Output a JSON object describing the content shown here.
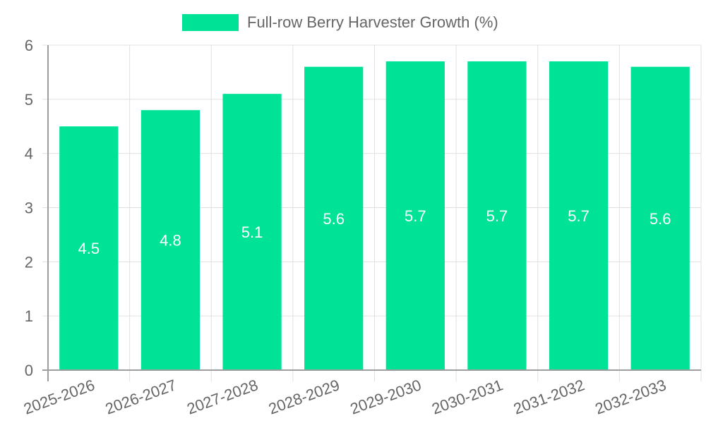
{
  "legend": {
    "label": "Full-row Berry Harvester Growth (%)",
    "color": "#00e396"
  },
  "colors": {
    "bar": "#00e396",
    "grid": "#e0e0e0",
    "axis": "#9e9e9e",
    "tick_text": "#666666",
    "bar_label": "#ffffff"
  },
  "chart_data": {
    "type": "bar",
    "title": "",
    "categories": [
      "2025-2026",
      "2026-2027",
      "2027-2028",
      "2028-2029",
      "2029-2030",
      "2030-2031",
      "2031-2032",
      "2032-2033"
    ],
    "series": [
      {
        "name": "Full-row Berry Harvester Growth (%)",
        "values": [
          4.5,
          4.8,
          5.1,
          5.6,
          5.7,
          5.7,
          5.7,
          5.6
        ]
      }
    ],
    "xlabel": "",
    "ylabel": "",
    "ylim": [
      0,
      6
    ],
    "yticks": [
      0,
      1,
      2,
      3,
      4,
      5,
      6
    ],
    "grid": true,
    "legend_position": "top",
    "data_labels": true
  }
}
